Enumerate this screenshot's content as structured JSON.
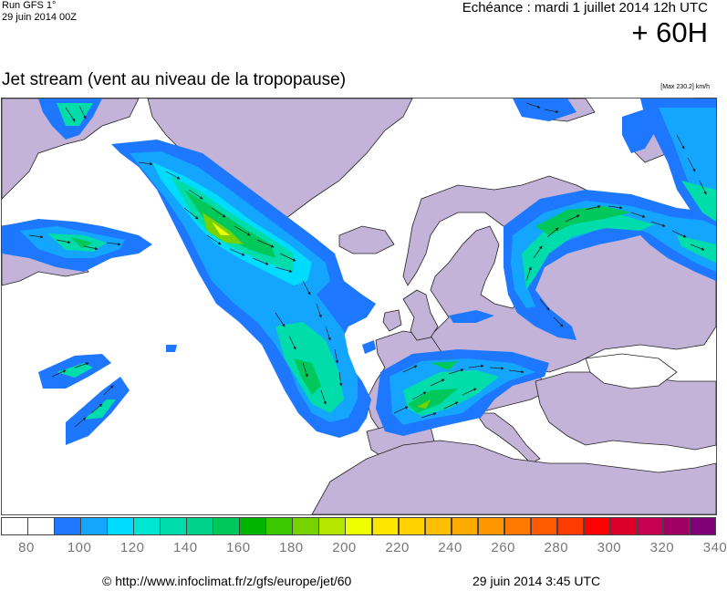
{
  "header": {
    "run_line1": "Run GFS 1°",
    "run_line2": "29 juin 2014 00Z",
    "echeance": "Echéance : mardi 1 juillet 2014 12h UTC",
    "hour": "+ 60H"
  },
  "map": {
    "title": "Jet stream (vent au niveau de la tropopause)",
    "max_label": "[Max 230.2] km/h",
    "colors": {
      "sea": "#ffffff",
      "land": "#c3b3d8",
      "coast": "#222222",
      "arrow": "#222222"
    }
  },
  "legend": {
    "colors": [
      "#ffffff",
      "#ffffff",
      "#1e78ff",
      "#14a5ff",
      "#00dcff",
      "#00e6d2",
      "#00dcaa",
      "#00d28c",
      "#00c85a",
      "#00b400",
      "#3cc800",
      "#78d200",
      "#b4e600",
      "#f0ff00",
      "#ffe600",
      "#ffd200",
      "#ffbe00",
      "#ffaa00",
      "#ff9600",
      "#ff7800",
      "#ff5a00",
      "#ff3c00",
      "#ff0000",
      "#dc0028",
      "#c80050",
      "#a00064",
      "#800078"
    ],
    "labels": [
      "80",
      "100",
      "120",
      "140",
      "160",
      "180",
      "200",
      "220",
      "240",
      "260",
      "280",
      "300",
      "320",
      "340"
    ]
  },
  "footer": {
    "url": "© http://www.infoclimat.fr/z/gfs/europe/jet/60",
    "date": "29 juin 2014  3:45 UTC"
  }
}
